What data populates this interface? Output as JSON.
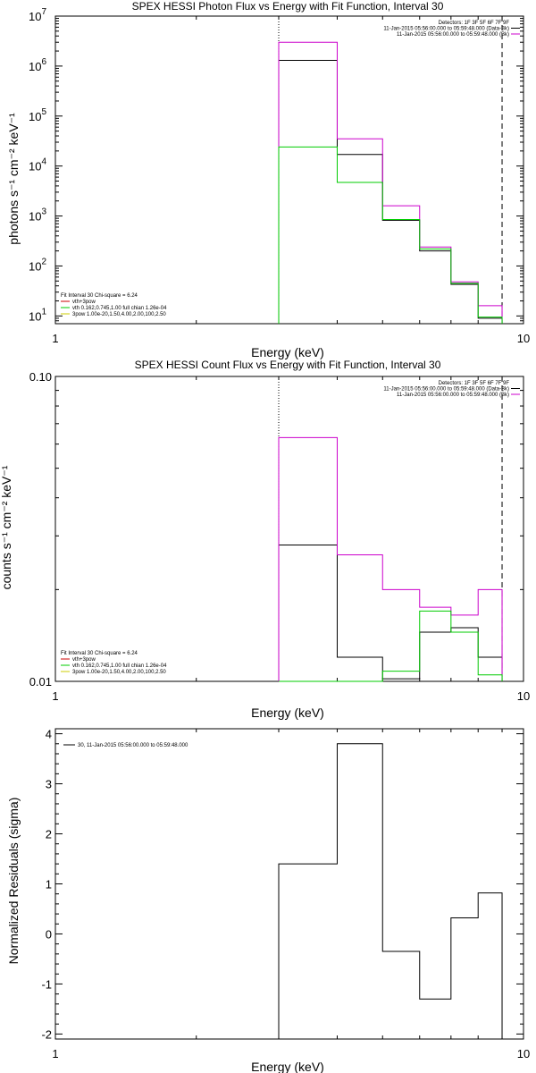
{
  "chart_data": [
    {
      "type": "step",
      "title": "SPEX HESSI Photon Flux vs Energy with Fit Function, Interval 30",
      "xlabel": "Energy (keV)",
      "ylabel": "photons s⁻¹ cm⁻² keV⁻¹",
      "x_scale": "log",
      "y_scale": "log",
      "xlim": [
        1,
        10
      ],
      "ylim": [
        7,
        10000000
      ],
      "x_ticks": [
        "1",
        "10"
      ],
      "y_ticks": [
        {
          "v": 10,
          "m": "10",
          "e": "1"
        },
        {
          "v": 100,
          "m": "10",
          "e": "2"
        },
        {
          "v": 1000,
          "m": "10",
          "e": "3"
        },
        {
          "v": 10000,
          "m": "10",
          "e": "4"
        },
        {
          "v": 100000,
          "m": "10",
          "e": "5"
        },
        {
          "v": 1000000,
          "m": "10",
          "e": "6"
        },
        {
          "v": 10000000,
          "m": "10",
          "e": "7"
        }
      ],
      "vlines": [
        {
          "x": 3.0,
          "style": "dotted"
        },
        {
          "x": 9.0,
          "style": "dashed"
        }
      ],
      "edges": [
        3.0,
        4.0,
        5.0,
        6.0,
        7.0,
        8.0,
        9.0
      ],
      "series": [
        {
          "color": "#000000",
          "values": [
            1300000,
            17000,
            820,
            200,
            43,
            9
          ]
        },
        {
          "color": "#cc00cc",
          "values": [
            3000000,
            35000,
            1600,
            240,
            48,
            16
          ]
        },
        {
          "color": "#00cc00",
          "values": [
            24000,
            4700,
            850,
            220,
            45,
            9.5
          ]
        }
      ],
      "legend_tr": {
        "position": "top-right",
        "lines": [
          {
            "text": "Detectors: 1F 3F 5F 6F 7F 9F",
            "color": ""
          },
          {
            "text": "11-Jan-2015 05:56:00.000 to 05:59:48.000 (Data-Bk)",
            "color": "#000000"
          },
          {
            "text": "11-Jan-2015 05:56:00.000 to 05:59:48.000 (Bk)",
            "color": "#cc00cc"
          }
        ]
      },
      "legend_bl": {
        "position": "bottom-left",
        "header": "Fit Interval 30   Chi-square = 6.24",
        "lines": [
          {
            "text": "vth+3pow",
            "color": "#cc0000"
          },
          {
            "text": "vth 0.162,0.745,1.00  full chian 1.26e-04",
            "color": "#00cc00"
          },
          {
            "text": "3pow 1.00e-20,1.50,4.00,2.00,100,2.50",
            "color": "#cccc00"
          }
        ]
      }
    },
    {
      "type": "step",
      "title": "SPEX HESSI Count Flux vs Energy with Fit Function, Interval 30",
      "xlabel": "Energy (keV)",
      "ylabel": "counts s⁻¹ cm⁻² keV⁻¹",
      "x_scale": "log",
      "y_scale": "log",
      "xlim": [
        1,
        10
      ],
      "ylim": [
        0.01,
        0.1
      ],
      "x_ticks": [
        "1",
        "10"
      ],
      "y_ticks": [
        {
          "v": 0.01,
          "m": "0.01",
          "e": ""
        },
        {
          "v": 0.1,
          "m": "0.10",
          "e": ""
        }
      ],
      "vlines": [
        {
          "x": 3.0,
          "style": "dotted"
        },
        {
          "x": 9.0,
          "style": "dashed"
        }
      ],
      "edges": [
        3.0,
        4.0,
        5.0,
        6.0,
        7.0,
        8.0,
        9.0
      ],
      "series": [
        {
          "color": "#000000",
          "values": [
            0.028,
            0.012,
            0.0102,
            0.0145,
            0.015,
            0.012
          ]
        },
        {
          "color": "#cc00cc",
          "values": [
            0.063,
            0.026,
            0.02,
            0.0175,
            0.0165,
            0.02
          ]
        },
        {
          "color": "#00cc00",
          "values": [
            0.01,
            0.01,
            0.0108,
            0.017,
            0.0145,
            0.0105
          ]
        }
      ],
      "legend_tr": {
        "position": "top-right",
        "lines": [
          {
            "text": "Detectors: 1F 3F 5F 6F 7F 9F",
            "color": ""
          },
          {
            "text": "11-Jan-2015 05:56:00.000 to 05:59:48.000 (Data-Bk)",
            "color": "#000000"
          },
          {
            "text": "11-Jan-2015 05:56:00.000 to 05:59:48.000 (Bk)",
            "color": "#cc00cc"
          }
        ]
      },
      "legend_bl": {
        "position": "bottom-left",
        "header": "Fit Interval 30   Chi-square = 6.24",
        "lines": [
          {
            "text": "vth+3pow",
            "color": "#cc0000"
          },
          {
            "text": "vth 0.162,0.745,1.00  full chian 1.26e-04",
            "color": "#00cc00"
          },
          {
            "text": "3pow 1.00e-20,1.50,4.00,2.00,100,2.50",
            "color": "#cccc00"
          }
        ]
      }
    },
    {
      "type": "step",
      "title": "",
      "xlabel": "Energy (keV)",
      "ylabel": "Normalized Residuals (sigma)",
      "x_scale": "log",
      "y_scale": "linear",
      "xlim": [
        1,
        10
      ],
      "ylim": [
        -2.1,
        4.1
      ],
      "x_ticks": [
        "1",
        "10"
      ],
      "y_ticks": [
        {
          "v": -2,
          "m": "-2",
          "e": ""
        },
        {
          "v": -1,
          "m": "-1",
          "e": ""
        },
        {
          "v": 0,
          "m": "0",
          "e": ""
        },
        {
          "v": 1,
          "m": "1",
          "e": ""
        },
        {
          "v": 2,
          "m": "2",
          "e": ""
        },
        {
          "v": 3,
          "m": "3",
          "e": ""
        },
        {
          "v": 4,
          "m": "4",
          "e": ""
        }
      ],
      "vlines": [],
      "edges": [
        3.0,
        4.0,
        5.0,
        6.0,
        7.0,
        8.0,
        9.0
      ],
      "series": [
        {
          "color": "#000000",
          "values": [
            1.4,
            3.8,
            -0.35,
            -1.3,
            0.32,
            0.82
          ]
        }
      ],
      "legend_tl": {
        "position": "top-left",
        "lines": [
          {
            "text": "30, 11-Jan-2015 05:56:00.000 to 05:59:48.000",
            "color": "#000000"
          }
        ]
      }
    }
  ]
}
